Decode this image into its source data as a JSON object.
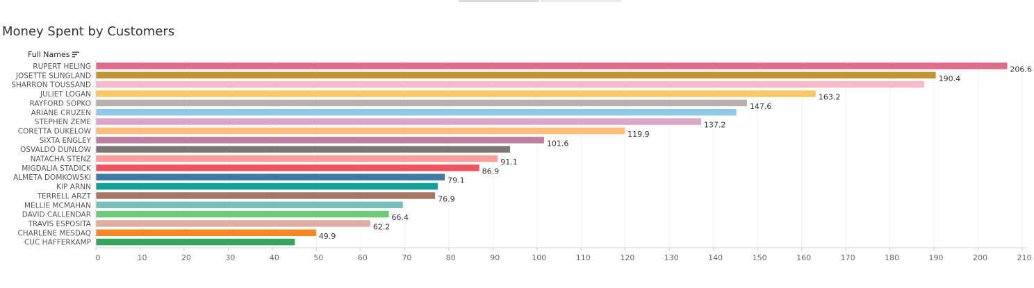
{
  "chart_data": {
    "type": "bar",
    "orientation": "horizontal",
    "title": "Money Spent by Customers",
    "category_header": "Full Names",
    "categories": [
      "RUPERT HELING",
      "JOSETTE SLINGLAND",
      "SHARRON TOUSSAND",
      "JULIET LOGAN",
      "RAYFORD SOPKO",
      "ARIANE CRUZEN",
      "STEPHEN ZEME",
      "CORETTA DUKELOW",
      "SIXTA ENGLEY",
      "OSVALDO DUNLOW",
      "NATACHA STENZ",
      "MIGDALIA STADICK",
      "ALMETA DOMKOWSKI",
      "KIP ARNN",
      "TERRELL ARZT",
      "MELLIE MCMAHAN",
      "DAVID CALLENDAR",
      "TRAVIS ESPOSITA",
      "CHARLENE MESDAQ",
      "CUC HAFFERKAMP"
    ],
    "values": [
      206.6,
      190.4,
      187.8,
      163.2,
      147.6,
      145.2,
      137.2,
      119.9,
      101.6,
      93.9,
      91.1,
      86.9,
      79.1,
      77.5,
      76.9,
      69.6,
      66.4,
      62.2,
      49.9,
      45.1
    ],
    "value_labels": [
      "206.6",
      "190.4",
      "",
      "163.2",
      "147.6",
      "",
      "137.2",
      "119.9",
      "101.6",
      "",
      "91.1",
      "86.9",
      "79.1",
      "",
      "76.9",
      "",
      "66.4",
      "62.2",
      "49.9",
      ""
    ],
    "colors": [
      "#e06c8c",
      "#be9532",
      "#f7b9cc",
      "#f8c862",
      "#bbb0ab",
      "#8ecae6",
      "#dca6c9",
      "#fdbd7b",
      "#bf7fa3",
      "#7f7475",
      "#fd9d99",
      "#f1535e",
      "#3f79a5",
      "#11a097",
      "#a77563",
      "#76bfbb",
      "#6bcb76",
      "#deaf9e",
      "#f58727",
      "#33a55d"
    ],
    "xlim": [
      0,
      210
    ],
    "xticks": [
      0,
      10,
      20,
      30,
      40,
      50,
      60,
      70,
      80,
      90,
      100,
      110,
      120,
      130,
      140,
      150,
      160,
      170,
      180,
      190,
      200,
      210
    ],
    "grid": true,
    "legend": "none"
  }
}
